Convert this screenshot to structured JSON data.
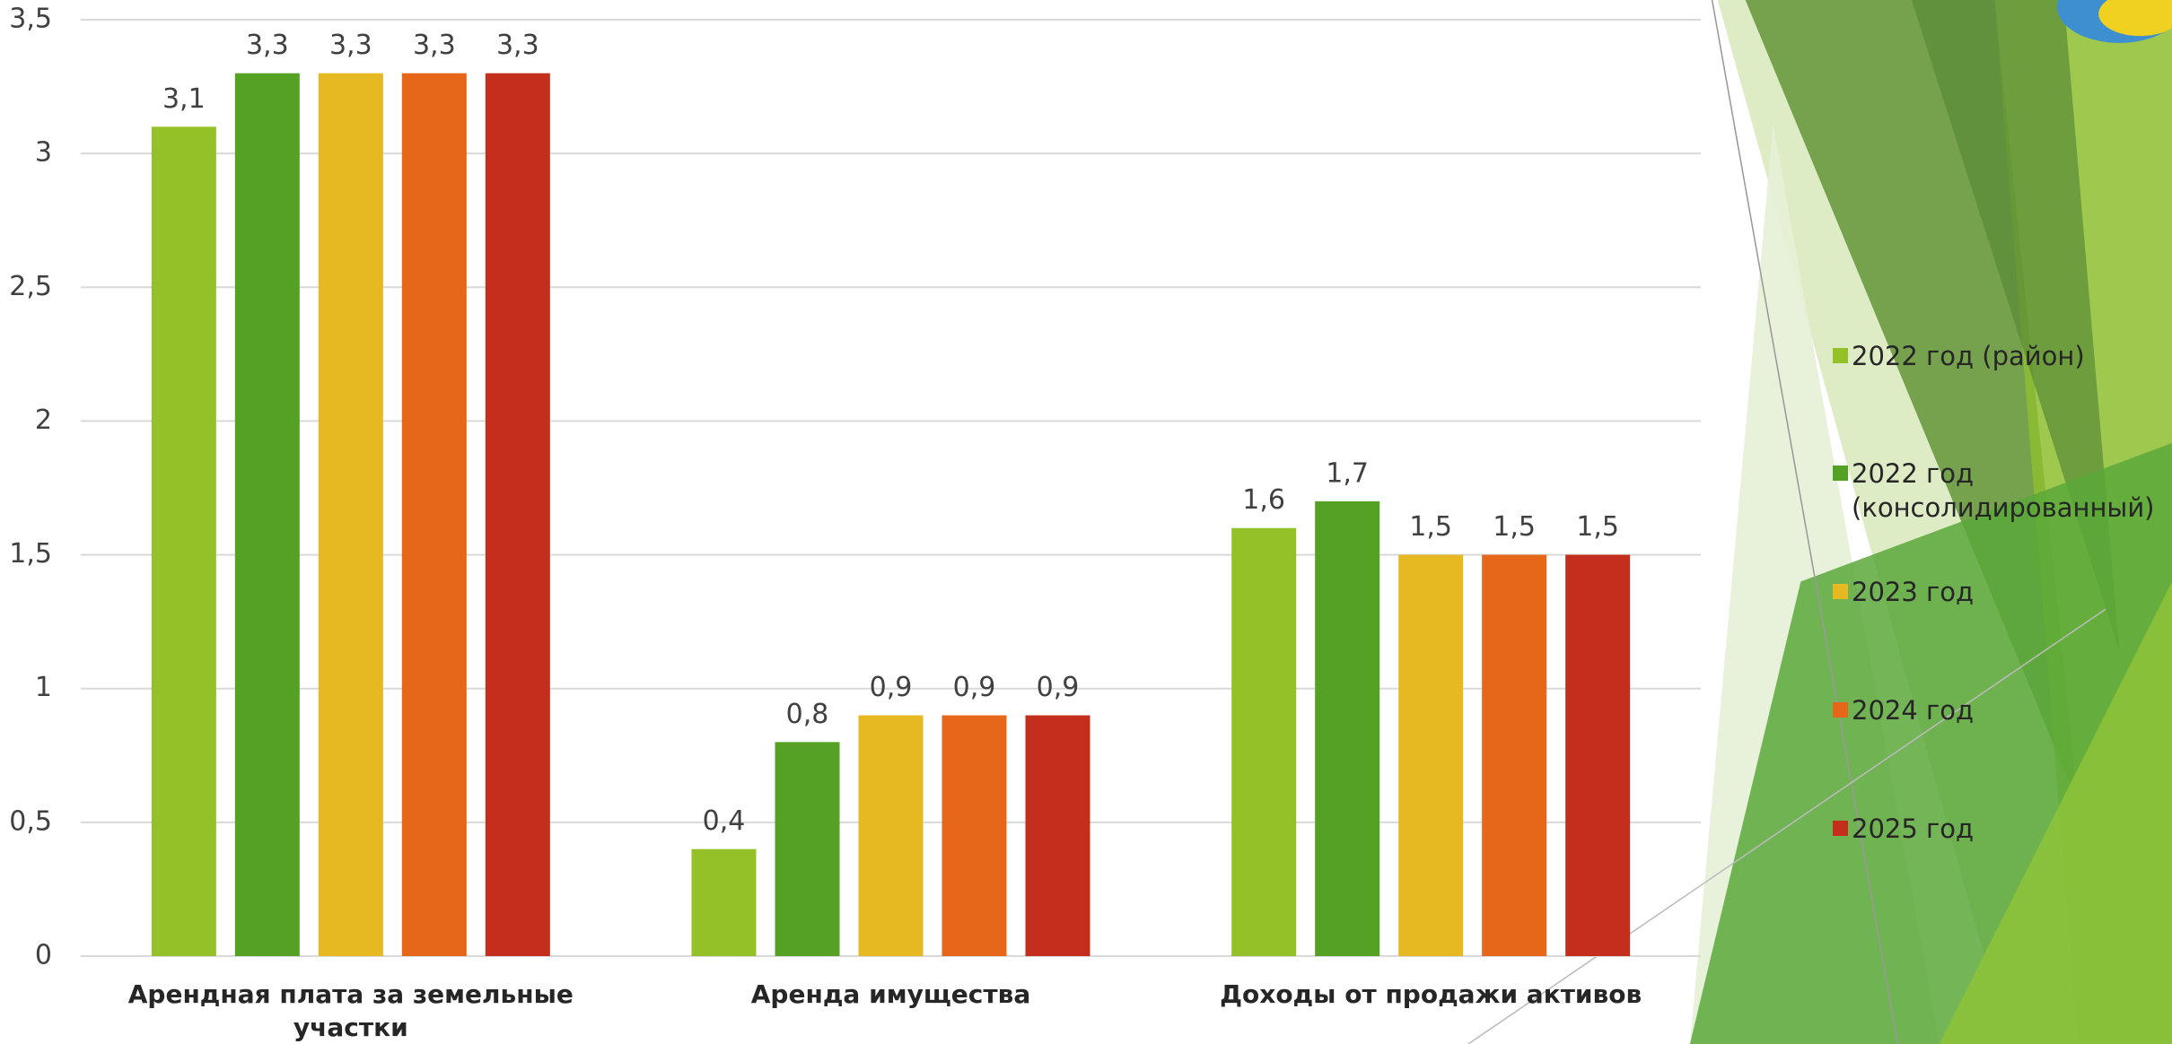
{
  "chart_data": {
    "type": "bar",
    "categories": [
      "Арендная плата за земельные участки",
      "Аренда имущества",
      "Доходы от продажи активов"
    ],
    "series": [
      {
        "name": "2022 год (район)",
        "color": "#93c127",
        "values": [
          3.1,
          0.4,
          1.6
        ],
        "value_labels": [
          "3,1",
          "0,4",
          "1,6"
        ]
      },
      {
        "name": "2022 год (консолидированный)",
        "color": "#55a123",
        "values": [
          3.3,
          0.8,
          1.7
        ],
        "value_labels": [
          "3,3",
          "0,8",
          "1,7"
        ]
      },
      {
        "name": "2023 год",
        "color": "#e6b922",
        "values": [
          3.3,
          0.9,
          1.5
        ],
        "value_labels": [
          "3,3",
          "0,9",
          "1,5"
        ]
      },
      {
        "name": "2024 год",
        "color": "#e6661a",
        "values": [
          3.3,
          0.9,
          1.5
        ],
        "value_labels": [
          "3,3",
          "0,9",
          "1,5"
        ]
      },
      {
        "name": "2025 год",
        "color": "#c42e1c",
        "values": [
          3.3,
          0.9,
          1.5
        ],
        "value_labels": [
          "3,3",
          "0,9",
          "1,5"
        ]
      }
    ],
    "ylim": [
      0,
      3.5
    ],
    "yticks": [
      0,
      {
        "value": 0.5,
        "label": "0,5"
      },
      1,
      {
        "value": 1.5,
        "label": "1,5"
      },
      2,
      {
        "value": 2.5,
        "label": "2,5"
      },
      3,
      {
        "value": 3.5,
        "label": "3,5"
      }
    ],
    "grid": true,
    "legend": "right"
  }
}
